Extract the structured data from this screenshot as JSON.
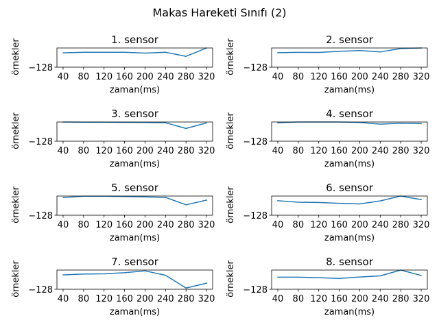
{
  "figure_title": "Makas Hareketi Sınıfı (2)",
  "colors": {
    "line": "#1f77b4",
    "axes": "#000000",
    "background": "#ffffff"
  },
  "chart_data": [
    {
      "type": "line",
      "title": "1. sensor",
      "xlabel": "zaman(ms)",
      "ylabel": "örnekler",
      "x": [
        40,
        80,
        120,
        160,
        200,
        240,
        280,
        320
      ],
      "xticks": [
        "40",
        "80",
        "120",
        "160",
        "200",
        "240",
        "280",
        "320"
      ],
      "yticks": [
        "−128"
      ],
      "ytick_values": [
        -128
      ],
      "xlim": [
        28,
        332
      ],
      "ylim": [
        -128,
        60
      ],
      "series": [
        {
          "values": [
            12,
            18,
            18,
            18,
            10,
            18,
            -22,
            60
          ]
        }
      ]
    },
    {
      "type": "line",
      "title": "2. sensor",
      "xlabel": "zaman(ms)",
      "ylabel": "örnekler",
      "x": [
        40,
        80,
        120,
        160,
        200,
        240,
        280,
        320
      ],
      "xticks": [
        "40",
        "80",
        "120",
        "160",
        "200",
        "240",
        "280",
        "320"
      ],
      "yticks": [
        "−128"
      ],
      "ytick_values": [
        -128
      ],
      "xlim": [
        28,
        332
      ],
      "ylim": [
        -128,
        60
      ],
      "series": [
        {
          "values": [
            14,
            17,
            16,
            27,
            35,
            21,
            55,
            60
          ]
        }
      ]
    },
    {
      "type": "line",
      "title": "3. sensor",
      "xlabel": "zaman(ms)",
      "ylabel": "örnekler",
      "x": [
        40,
        80,
        120,
        160,
        200,
        240,
        280,
        320
      ],
      "xticks": [
        "40",
        "80",
        "120",
        "160",
        "200",
        "240",
        "280",
        "320"
      ],
      "yticks": [
        "−128"
      ],
      "ytick_values": [
        -128
      ],
      "xlim": [
        28,
        332
      ],
      "ylim": [
        -128,
        60
      ],
      "series": [
        {
          "values": [
            60,
            58,
            58,
            57,
            56,
            53,
            -3,
            51
          ]
        }
      ]
    },
    {
      "type": "line",
      "title": "4. sensor",
      "xlabel": "zaman(ms)",
      "ylabel": "örnekler",
      "x": [
        40,
        80,
        120,
        160,
        200,
        240,
        280,
        320
      ],
      "xticks": [
        "40",
        "80",
        "120",
        "160",
        "200",
        "240",
        "280",
        "320"
      ],
      "yticks": [
        "−128"
      ],
      "ytick_values": [
        -128
      ],
      "xlim": [
        28,
        332
      ],
      "ylim": [
        -128,
        60
      ],
      "series": [
        {
          "values": [
            53,
            60,
            60,
            60,
            56,
            39,
            48,
            44
          ]
        }
      ]
    },
    {
      "type": "line",
      "title": "5. sensor",
      "xlabel": "zaman(ms)",
      "ylabel": "örnekler",
      "x": [
        40,
        80,
        120,
        160,
        200,
        240,
        280,
        320
      ],
      "xticks": [
        "40",
        "80",
        "120",
        "160",
        "200",
        "240",
        "280",
        "320"
      ],
      "yticks": [
        "−128"
      ],
      "ytick_values": [
        -128
      ],
      "xlim": [
        28,
        332
      ],
      "ylim": [
        -128,
        60
      ],
      "series": [
        {
          "values": [
            45,
            58,
            58,
            55,
            52,
            47,
            -26,
            20
          ]
        }
      ]
    },
    {
      "type": "line",
      "title": "6. sensor",
      "xlabel": "zaman(ms)",
      "ylabel": "örnekler",
      "x": [
        40,
        80,
        120,
        160,
        200,
        240,
        280,
        320
      ],
      "xticks": [
        "40",
        "80",
        "120",
        "160",
        "200",
        "240",
        "280",
        "320"
      ],
      "yticks": [
        "−128"
      ],
      "ytick_values": [
        -128
      ],
      "xlim": [
        28,
        332
      ],
      "ylim": [
        -128,
        60
      ],
      "series": [
        {
          "values": [
            14,
            0,
            -3,
            -11,
            -17,
            12,
            60,
            25
          ]
        }
      ]
    },
    {
      "type": "line",
      "title": "7. sensor",
      "xlabel": "zaman(ms)",
      "ylabel": "örnekler",
      "x": [
        40,
        80,
        120,
        160,
        200,
        240,
        280,
        320
      ],
      "xticks": [
        "40",
        "80",
        "120",
        "160",
        "200",
        "240",
        "280",
        "320"
      ],
      "yticks": [
        "−128"
      ],
      "ytick_values": [
        -128
      ],
      "xlim": [
        28,
        332
      ],
      "ylim": [
        -128,
        60
      ],
      "series": [
        {
          "values": [
            12,
            21,
            23,
            34,
            52,
            9,
            -116,
            -69
          ]
        }
      ]
    },
    {
      "type": "line",
      "title": "8. sensor",
      "xlabel": "zaman(ms)",
      "ylabel": "örnekler",
      "x": [
        40,
        80,
        120,
        160,
        200,
        240,
        280,
        320
      ],
      "xticks": [
        "40",
        "80",
        "120",
        "160",
        "200",
        "240",
        "280",
        "320"
      ],
      "yticks": [
        "−128"
      ],
      "ytick_values": [
        -128
      ],
      "xlim": [
        28,
        332
      ],
      "ylim": [
        -128,
        60
      ],
      "series": [
        {
          "values": [
            -10,
            -10,
            -15,
            -22,
            -8,
            3,
            60,
            7
          ]
        }
      ]
    }
  ]
}
